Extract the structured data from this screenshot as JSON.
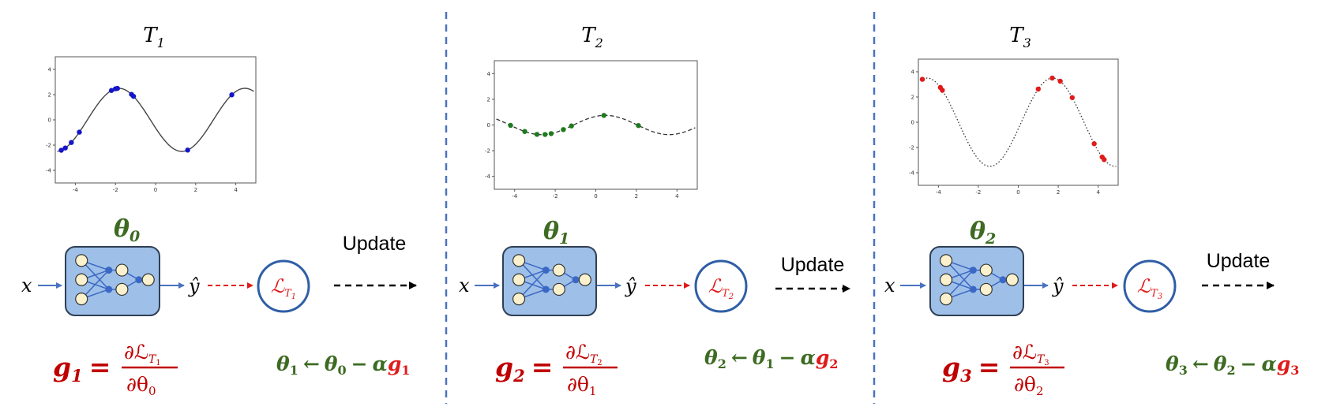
{
  "colors": {
    "green": "#3d6b22",
    "red": "#c00000",
    "divider": "#4a72c0",
    "network_box": "#9ec0e8",
    "network_box_border": "#2f3f55",
    "node_fill": "#fbf1cc",
    "hidden_node": "#3c68c5",
    "edge": "#3c68c5"
  },
  "stages": [
    {
      "task_prefix": "T",
      "task_sub": "1",
      "theta_sym": "θ",
      "theta_sub": "0",
      "input_label": "x",
      "output_label": "ŷ",
      "loss_sym": "ℒ",
      "loss_T": "T",
      "loss_sub": "1",
      "update_label": "Update",
      "grad_lhs_sym": "g",
      "grad_lhs_sub": "1",
      "grad_eq": "=",
      "grad_num_partial": "∂ℒ",
      "grad_num_T": "T",
      "grad_num_sub": "1",
      "grad_den": "∂θ",
      "grad_den_sub": "0",
      "upd_theta": "θ",
      "upd_new_sub": "1",
      "upd_arrow": "←",
      "upd_old_sub": "0",
      "upd_minus": "−",
      "upd_alpha": "α",
      "upd_g": "g",
      "upd_g_sub": "1",
      "chart_style": "solid",
      "point_color": "#1515c8"
    },
    {
      "task_prefix": "T",
      "task_sub": "2",
      "theta_sym": "θ",
      "theta_sub": "1",
      "input_label": "x",
      "output_label": "ŷ",
      "loss_sym": "ℒ",
      "loss_T": "T",
      "loss_sub": "2",
      "update_label": "Update",
      "grad_lhs_sym": "g",
      "grad_lhs_sub": "2",
      "grad_eq": "=",
      "grad_num_partial": "∂ℒ",
      "grad_num_T": "T",
      "grad_num_sub": "2",
      "grad_den": "∂θ",
      "grad_den_sub": "1",
      "upd_theta": "θ",
      "upd_new_sub": "2",
      "upd_arrow": "←",
      "upd_old_sub": "1",
      "upd_minus": "−",
      "upd_alpha": "α",
      "upd_g": "g",
      "upd_g_sub": "2",
      "chart_style": "dashed",
      "point_color": "#1f7a1f"
    },
    {
      "task_prefix": "T",
      "task_sub": "3",
      "theta_sym": "θ",
      "theta_sub": "2",
      "input_label": "x",
      "output_label": "ŷ",
      "loss_sym": "ℒ",
      "loss_T": "T",
      "loss_sub": "3",
      "update_label": "Update",
      "grad_lhs_sym": "g",
      "grad_lhs_sub": "3",
      "grad_eq": "=",
      "grad_num_partial": "∂ℒ",
      "grad_num_T": "T",
      "grad_num_sub": "3",
      "grad_den": "∂θ",
      "grad_den_sub": "2",
      "upd_theta": "θ",
      "upd_new_sub": "3",
      "upd_arrow": "←",
      "upd_old_sub": "2",
      "upd_minus": "−",
      "upd_alpha": "α",
      "upd_g": "g",
      "upd_g_sub": "3",
      "chart_style": "dotted",
      "point_color": "#e01b1b"
    }
  ],
  "chart_data": [
    {
      "type": "line",
      "x_ticks": [
        "-4",
        "-2",
        "0",
        "2",
        "4"
      ],
      "y_ticks": [
        "4",
        "2",
        "0",
        "-2",
        "-4"
      ],
      "xlim": [
        -5,
        5
      ],
      "ylim": [
        -5,
        5
      ],
      "curve": {
        "amplitude": 2.5,
        "frequency": 1.0,
        "phase": 3.4
      },
      "points_x": [
        -4.7,
        -4.5,
        -4.2,
        -3.8,
        -2.2,
        -2.0,
        -1.9,
        -1.2,
        -1.1,
        1.6,
        3.8
      ]
    },
    {
      "type": "line",
      "x_ticks": [
        "-4",
        "-2",
        "0",
        "2",
        "4"
      ],
      "y_ticks": [
        "4",
        "2",
        "0",
        "-2",
        "-4"
      ],
      "xlim": [
        -5,
        5
      ],
      "ylim": [
        -5,
        5
      ],
      "curve": {
        "amplitude": 0.75,
        "frequency": 1.0,
        "phase": 1.1
      },
      "points_x": [
        -4.2,
        -3.5,
        -2.9,
        -2.5,
        -2.2,
        -1.6,
        -1.2,
        0.4,
        2.1
      ]
    },
    {
      "type": "line",
      "x_ticks": [
        "-4",
        "-2",
        "0",
        "2",
        "4"
      ],
      "y_ticks": [
        "4",
        "2",
        "0",
        "-2",
        "-4"
      ],
      "xlim": [
        -5,
        5
      ],
      "ylim": [
        -5,
        5
      ],
      "curve": {
        "amplitude": 3.5,
        "frequency": 1.0,
        "phase": -0.15
      },
      "points_x": [
        -4.8,
        -3.9,
        -3.8,
        1.0,
        1.7,
        2.1,
        2.7,
        3.8,
        4.2,
        4.3
      ]
    }
  ]
}
